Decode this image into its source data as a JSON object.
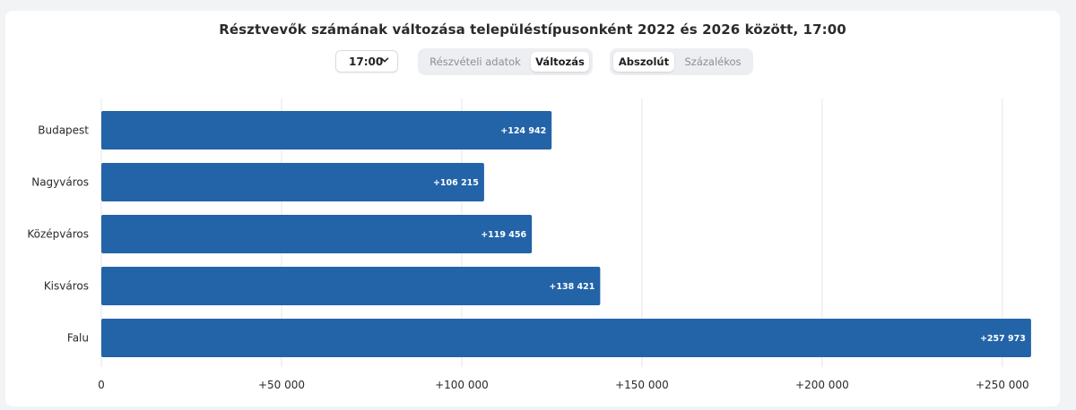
{
  "title": "Résztvevők számának változása településtípusonként 2022 és 2026 között, 17:00",
  "controls": {
    "time_select": {
      "value": "17:00",
      "icon": "chevron-down-icon"
    },
    "data_toggle": [
      {
        "label": "Részvételi adatok",
        "active": false
      },
      {
        "label": "Változás",
        "active": true
      }
    ],
    "mode_toggle": [
      {
        "label": "Abszolút",
        "active": true
      },
      {
        "label": "Százalékos",
        "active": false
      }
    ]
  },
  "colors": {
    "bar": "#2363a8",
    "grid": "#e6e6e6",
    "background": "#ffffff"
  },
  "chart_data": {
    "type": "bar",
    "orientation": "horizontal",
    "categories": [
      "Budapest",
      "Nagyváros",
      "Középváros",
      "Kisváros",
      "Falu"
    ],
    "values": [
      124942,
      106215,
      119456,
      138421,
      257973
    ],
    "data_labels": [
      "+124 942",
      "+106 215",
      "+119 456",
      "+138 421",
      "+257 973"
    ],
    "xlim": [
      0,
      258000
    ],
    "x_ticks": [
      0,
      50000,
      100000,
      150000,
      200000,
      250000
    ],
    "x_tick_labels": [
      "0",
      "+50 000",
      "+100 000",
      "+150 000",
      "+200 000",
      "+250 000"
    ],
    "grid": true
  }
}
